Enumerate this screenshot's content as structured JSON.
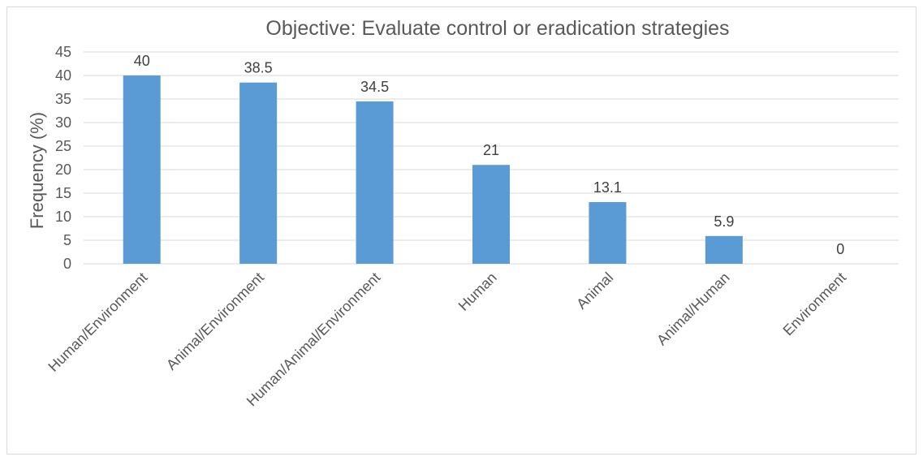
{
  "chart_data": {
    "type": "bar",
    "title": "Objective: Evaluate control or eradication strategies",
    "xlabel": "",
    "ylabel": "Frequency (%)",
    "ylim": [
      0,
      45
    ],
    "yticks": [
      0,
      5,
      10,
      15,
      20,
      25,
      30,
      35,
      40,
      45
    ],
    "grid": true,
    "legend": "none",
    "bar_color": "#5b9bd5",
    "categories": [
      "Human/Environment",
      "Animal/Environment",
      "Human/Animal/Environment",
      "Human",
      "Animal",
      "Animal/Human",
      "Environment"
    ],
    "values": [
      40,
      38.5,
      34.5,
      21,
      13.1,
      5.9,
      0
    ],
    "data_labels": [
      "40",
      "38.5",
      "34.5",
      "21",
      "13.1",
      "5.9",
      "0"
    ]
  }
}
